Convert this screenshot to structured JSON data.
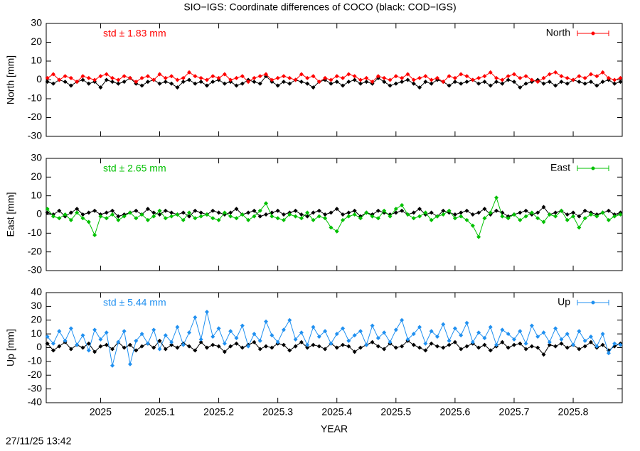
{
  "title": "SIO−IGS: Coordinate differences of COCO (black: COD−IGS)",
  "timestamp": "27/11/25 13:42",
  "chart_data": [
    {
      "type": "line",
      "ylabel": "North [mm]",
      "annotation": "std ± 1.83 mm",
      "annotation_color": "#ff0000",
      "xlim": [
        2024.908,
        2025.883
      ],
      "ylim": [
        -30,
        30
      ],
      "yticks": [
        -30,
        -20,
        -10,
        0,
        10,
        20,
        30
      ],
      "legend": "top-right",
      "x": [
        2024.91,
        2024.92,
        2024.93,
        2024.94,
        2024.95,
        2024.96,
        2024.97,
        2024.98,
        2024.99,
        2025.0,
        2025.01,
        2025.02,
        2025.03,
        2025.04,
        2025.05,
        2025.06,
        2025.07,
        2025.08,
        2025.09,
        2025.1,
        2025.11,
        2025.12,
        2025.13,
        2025.14,
        2025.15,
        2025.16,
        2025.17,
        2025.18,
        2025.19,
        2025.2,
        2025.21,
        2025.22,
        2025.23,
        2025.24,
        2025.25,
        2025.26,
        2025.27,
        2025.28,
        2025.29,
        2025.3,
        2025.31,
        2025.32,
        2025.33,
        2025.34,
        2025.35,
        2025.36,
        2025.37,
        2025.38,
        2025.39,
        2025.4,
        2025.41,
        2025.42,
        2025.43,
        2025.44,
        2025.45,
        2025.46,
        2025.47,
        2025.48,
        2025.49,
        2025.5,
        2025.51,
        2025.52,
        2025.53,
        2025.54,
        2025.55,
        2025.56,
        2025.57,
        2025.58,
        2025.59,
        2025.6,
        2025.61,
        2025.62,
        2025.63,
        2025.64,
        2025.65,
        2025.66,
        2025.67,
        2025.68,
        2025.69,
        2025.7,
        2025.71,
        2025.72,
        2025.73,
        2025.74,
        2025.75,
        2025.76,
        2025.77,
        2025.78,
        2025.79,
        2025.8,
        2025.81,
        2025.82,
        2025.83,
        2025.84,
        2025.85,
        2025.86,
        2025.87,
        2025.88
      ],
      "series": [
        {
          "color": "#000000",
          "values": [
            -1,
            -2,
            0,
            -1,
            -3,
            -1,
            0,
            -2,
            -1,
            -4,
            0,
            -1,
            -2,
            -1,
            1,
            -2,
            -3,
            -1,
            0,
            -2,
            -1,
            -2,
            -4,
            -1,
            0,
            -2,
            -1,
            -3,
            -1,
            0,
            -2,
            -1,
            -3,
            -2,
            0,
            -1,
            -2,
            2,
            -1,
            -3,
            -1,
            -2,
            0,
            -1,
            -2,
            -4,
            -1,
            0,
            -2,
            -1,
            -3,
            -1,
            0,
            -2,
            -1,
            -2,
            1,
            -1,
            -3,
            -2,
            -1,
            0,
            -2,
            -4,
            -1,
            -2,
            0,
            -1,
            -3,
            -1,
            -2,
            -1,
            0,
            -2,
            -1,
            -3,
            -1,
            -2,
            0,
            -1,
            -4,
            -2,
            -1,
            0,
            -2,
            -1,
            -3,
            -1,
            -2,
            0,
            -1,
            -2,
            -1,
            -3,
            -1,
            0,
            -2,
            -1
          ]
        },
        {
          "name": "North",
          "color": "#ff0000",
          "values": [
            1,
            3,
            0,
            2,
            1,
            -1,
            2,
            1,
            0,
            2,
            3,
            1,
            0,
            2,
            1,
            -1,
            1,
            2,
            0,
            3,
            1,
            2,
            0,
            1,
            4,
            2,
            1,
            0,
            2,
            1,
            3,
            0,
            1,
            2,
            -1,
            1,
            2,
            3,
            0,
            1,
            2,
            1,
            0,
            3,
            1,
            2,
            -1,
            1,
            0,
            2,
            1,
            3,
            2,
            0,
            1,
            -1,
            2,
            1,
            0,
            2,
            1,
            3,
            0,
            1,
            2,
            0,
            1,
            -1,
            2,
            1,
            3,
            2,
            0,
            1,
            2,
            4,
            1,
            0,
            2,
            3,
            1,
            2,
            0,
            -1,
            1,
            3,
            4,
            2,
            1,
            0,
            2,
            1,
            3,
            2,
            4,
            1,
            0,
            1
          ]
        }
      ]
    },
    {
      "type": "line",
      "ylabel": "East [mm]",
      "annotation": "std ± 2.65 mm",
      "annotation_color": "#00c000",
      "xlim": [
        2024.908,
        2025.883
      ],
      "ylim": [
        -30,
        30
      ],
      "yticks": [
        -30,
        -20,
        -10,
        0,
        10,
        20,
        30
      ],
      "legend": "top-right",
      "x": [
        2024.91,
        2024.92,
        2024.93,
        2024.94,
        2024.95,
        2024.96,
        2024.97,
        2024.98,
        2024.99,
        2025.0,
        2025.01,
        2025.02,
        2025.03,
        2025.04,
        2025.05,
        2025.06,
        2025.07,
        2025.08,
        2025.09,
        2025.1,
        2025.11,
        2025.12,
        2025.13,
        2025.14,
        2025.15,
        2025.16,
        2025.17,
        2025.18,
        2025.19,
        2025.2,
        2025.21,
        2025.22,
        2025.23,
        2025.24,
        2025.25,
        2025.26,
        2025.27,
        2025.28,
        2025.29,
        2025.3,
        2025.31,
        2025.32,
        2025.33,
        2025.34,
        2025.35,
        2025.36,
        2025.37,
        2025.38,
        2025.39,
        2025.4,
        2025.41,
        2025.42,
        2025.43,
        2025.44,
        2025.45,
        2025.46,
        2025.47,
        2025.48,
        2025.49,
        2025.5,
        2025.51,
        2025.52,
        2025.53,
        2025.54,
        2025.55,
        2025.56,
        2025.57,
        2025.58,
        2025.59,
        2025.6,
        2025.61,
        2025.62,
        2025.63,
        2025.64,
        2025.65,
        2025.66,
        2025.67,
        2025.68,
        2025.69,
        2025.7,
        2025.71,
        2025.72,
        2025.73,
        2025.74,
        2025.75,
        2025.76,
        2025.77,
        2025.78,
        2025.79,
        2025.8,
        2025.81,
        2025.82,
        2025.83,
        2025.84,
        2025.85,
        2025.86,
        2025.87,
        2025.88
      ],
      "series": [
        {
          "color": "#000000",
          "values": [
            1,
            0,
            2,
            -1,
            1,
            3,
            0,
            1,
            2,
            0,
            1,
            2,
            -1,
            0,
            1,
            2,
            0,
            3,
            1,
            0,
            2,
            1,
            0,
            1,
            -1,
            2,
            1,
            0,
            2,
            1,
            0,
            1,
            3,
            0,
            1,
            2,
            -1,
            0,
            1,
            2,
            0,
            1,
            2,
            0,
            -1,
            1,
            2,
            0,
            1,
            3,
            0,
            1,
            2,
            -1,
            1,
            0,
            2,
            1,
            0,
            1,
            2,
            0,
            1,
            3,
            0,
            1,
            -1,
            2,
            1,
            0,
            1,
            2,
            0,
            1,
            3,
            0,
            2,
            1,
            -1,
            0,
            1,
            2,
            0,
            1,
            4,
            0,
            1,
            2,
            0,
            1,
            -1,
            2,
            1,
            0,
            1,
            2,
            0,
            1
          ]
        },
        {
          "name": "East",
          "color": "#00c000",
          "values": [
            3,
            -1,
            -2,
            0,
            -3,
            1,
            -2,
            -4,
            -11,
            -1,
            -2,
            0,
            -3,
            -1,
            1,
            -2,
            0,
            -3,
            -1,
            2,
            -2,
            -1,
            0,
            -3,
            1,
            -2,
            -1,
            0,
            -2,
            -3,
            1,
            -1,
            -2,
            0,
            -3,
            -1,
            2,
            6,
            -1,
            -2,
            -3,
            0,
            -1,
            -2,
            1,
            -3,
            -1,
            -2,
            -7,
            -9,
            -3,
            -1,
            0,
            -2,
            1,
            -1,
            -2,
            2,
            -1,
            3,
            5,
            0,
            -2,
            -1,
            1,
            -3,
            -1,
            0,
            2,
            -2,
            -1,
            -3,
            -6,
            -12,
            -2,
            1,
            9,
            -1,
            -2,
            0,
            -3,
            -1,
            1,
            -2,
            -4,
            0,
            -1,
            2,
            -3,
            -1,
            -7,
            -2,
            0,
            -1,
            1,
            -3,
            -1,
            0
          ]
        }
      ]
    },
    {
      "type": "line",
      "ylabel": "Up [mm]",
      "annotation": "std ± 5.44 mm",
      "annotation_color": "#2090f0",
      "xlabel": "YEAR",
      "xticks": [
        2025,
        2025.1,
        2025.2,
        2025.3,
        2025.4,
        2025.5,
        2025.6,
        2025.7,
        2025.8
      ],
      "xlim": [
        2024.908,
        2025.883
      ],
      "ylim": [
        -40,
        40
      ],
      "yticks": [
        -40,
        -30,
        -20,
        -10,
        0,
        10,
        20,
        30,
        40
      ],
      "legend": "top-right",
      "x": [
        2024.91,
        2024.92,
        2024.93,
        2024.94,
        2024.95,
        2024.96,
        2024.97,
        2024.98,
        2024.99,
        2025.0,
        2025.01,
        2025.02,
        2025.03,
        2025.04,
        2025.05,
        2025.06,
        2025.07,
        2025.08,
        2025.09,
        2025.1,
        2025.11,
        2025.12,
        2025.13,
        2025.14,
        2025.15,
        2025.16,
        2025.17,
        2025.18,
        2025.19,
        2025.2,
        2025.21,
        2025.22,
        2025.23,
        2025.24,
        2025.25,
        2025.26,
        2025.27,
        2025.28,
        2025.29,
        2025.3,
        2025.31,
        2025.32,
        2025.33,
        2025.34,
        2025.35,
        2025.36,
        2025.37,
        2025.38,
        2025.39,
        2025.4,
        2025.41,
        2025.42,
        2025.43,
        2025.44,
        2025.45,
        2025.46,
        2025.47,
        2025.48,
        2025.49,
        2025.5,
        2025.51,
        2025.52,
        2025.53,
        2025.54,
        2025.55,
        2025.56,
        2025.57,
        2025.58,
        2025.59,
        2025.6,
        2025.61,
        2025.62,
        2025.63,
        2025.64,
        2025.65,
        2025.66,
        2025.67,
        2025.68,
        2025.69,
        2025.7,
        2025.71,
        2025.72,
        2025.73,
        2025.74,
        2025.75,
        2025.76,
        2025.77,
        2025.78,
        2025.79,
        2025.8,
        2025.81,
        2025.82,
        2025.83,
        2025.84,
        2025.85,
        2025.86,
        2025.87,
        2025.88
      ],
      "series": [
        {
          "color": "#000000",
          "values": [
            3,
            -2,
            1,
            4,
            -1,
            2,
            0,
            3,
            -3,
            1,
            2,
            -1,
            4,
            0,
            2,
            -2,
            1,
            3,
            0,
            5,
            -1,
            2,
            0,
            3,
            1,
            -2,
            4,
            0,
            2,
            1,
            -3,
            1,
            3,
            0,
            2,
            4,
            -1,
            1,
            0,
            3,
            2,
            -2,
            1,
            4,
            0,
            2,
            1,
            -1,
            3,
            0,
            2,
            1,
            -3,
            0,
            2,
            4,
            1,
            -1,
            3,
            0,
            1,
            5,
            2,
            0,
            -2,
            3,
            1,
            0,
            2,
            4,
            -1,
            1,
            3,
            0,
            2,
            -2,
            1,
            4,
            0,
            2,
            3,
            -1,
            1,
            0,
            -5,
            2,
            1,
            3,
            0,
            2,
            -1,
            1,
            4,
            0,
            2,
            -2,
            1,
            3
          ]
        },
        {
          "name": "Up",
          "color": "#2090f0",
          "values": [
            8,
            3,
            12,
            5,
            14,
            2,
            9,
            -2,
            13,
            6,
            11,
            -13,
            4,
            12,
            -12,
            5,
            10,
            3,
            13,
            -1,
            9,
            4,
            15,
            2,
            11,
            22,
            6,
            26,
            8,
            14,
            3,
            12,
            7,
            16,
            1,
            10,
            5,
            19,
            9,
            4,
            13,
            20,
            6,
            11,
            2,
            15,
            8,
            12,
            3,
            10,
            14,
            5,
            9,
            12,
            2,
            16,
            7,
            11,
            4,
            13,
            20,
            6,
            10,
            15,
            3,
            12,
            8,
            17,
            5,
            14,
            9,
            18,
            4,
            11,
            7,
            15,
            2,
            13,
            10,
            6,
            12,
            3,
            16,
            8,
            11,
            4,
            14,
            6,
            10,
            2,
            12,
            5,
            8,
            1,
            10,
            -4,
            3,
            2
          ]
        }
      ]
    }
  ]
}
